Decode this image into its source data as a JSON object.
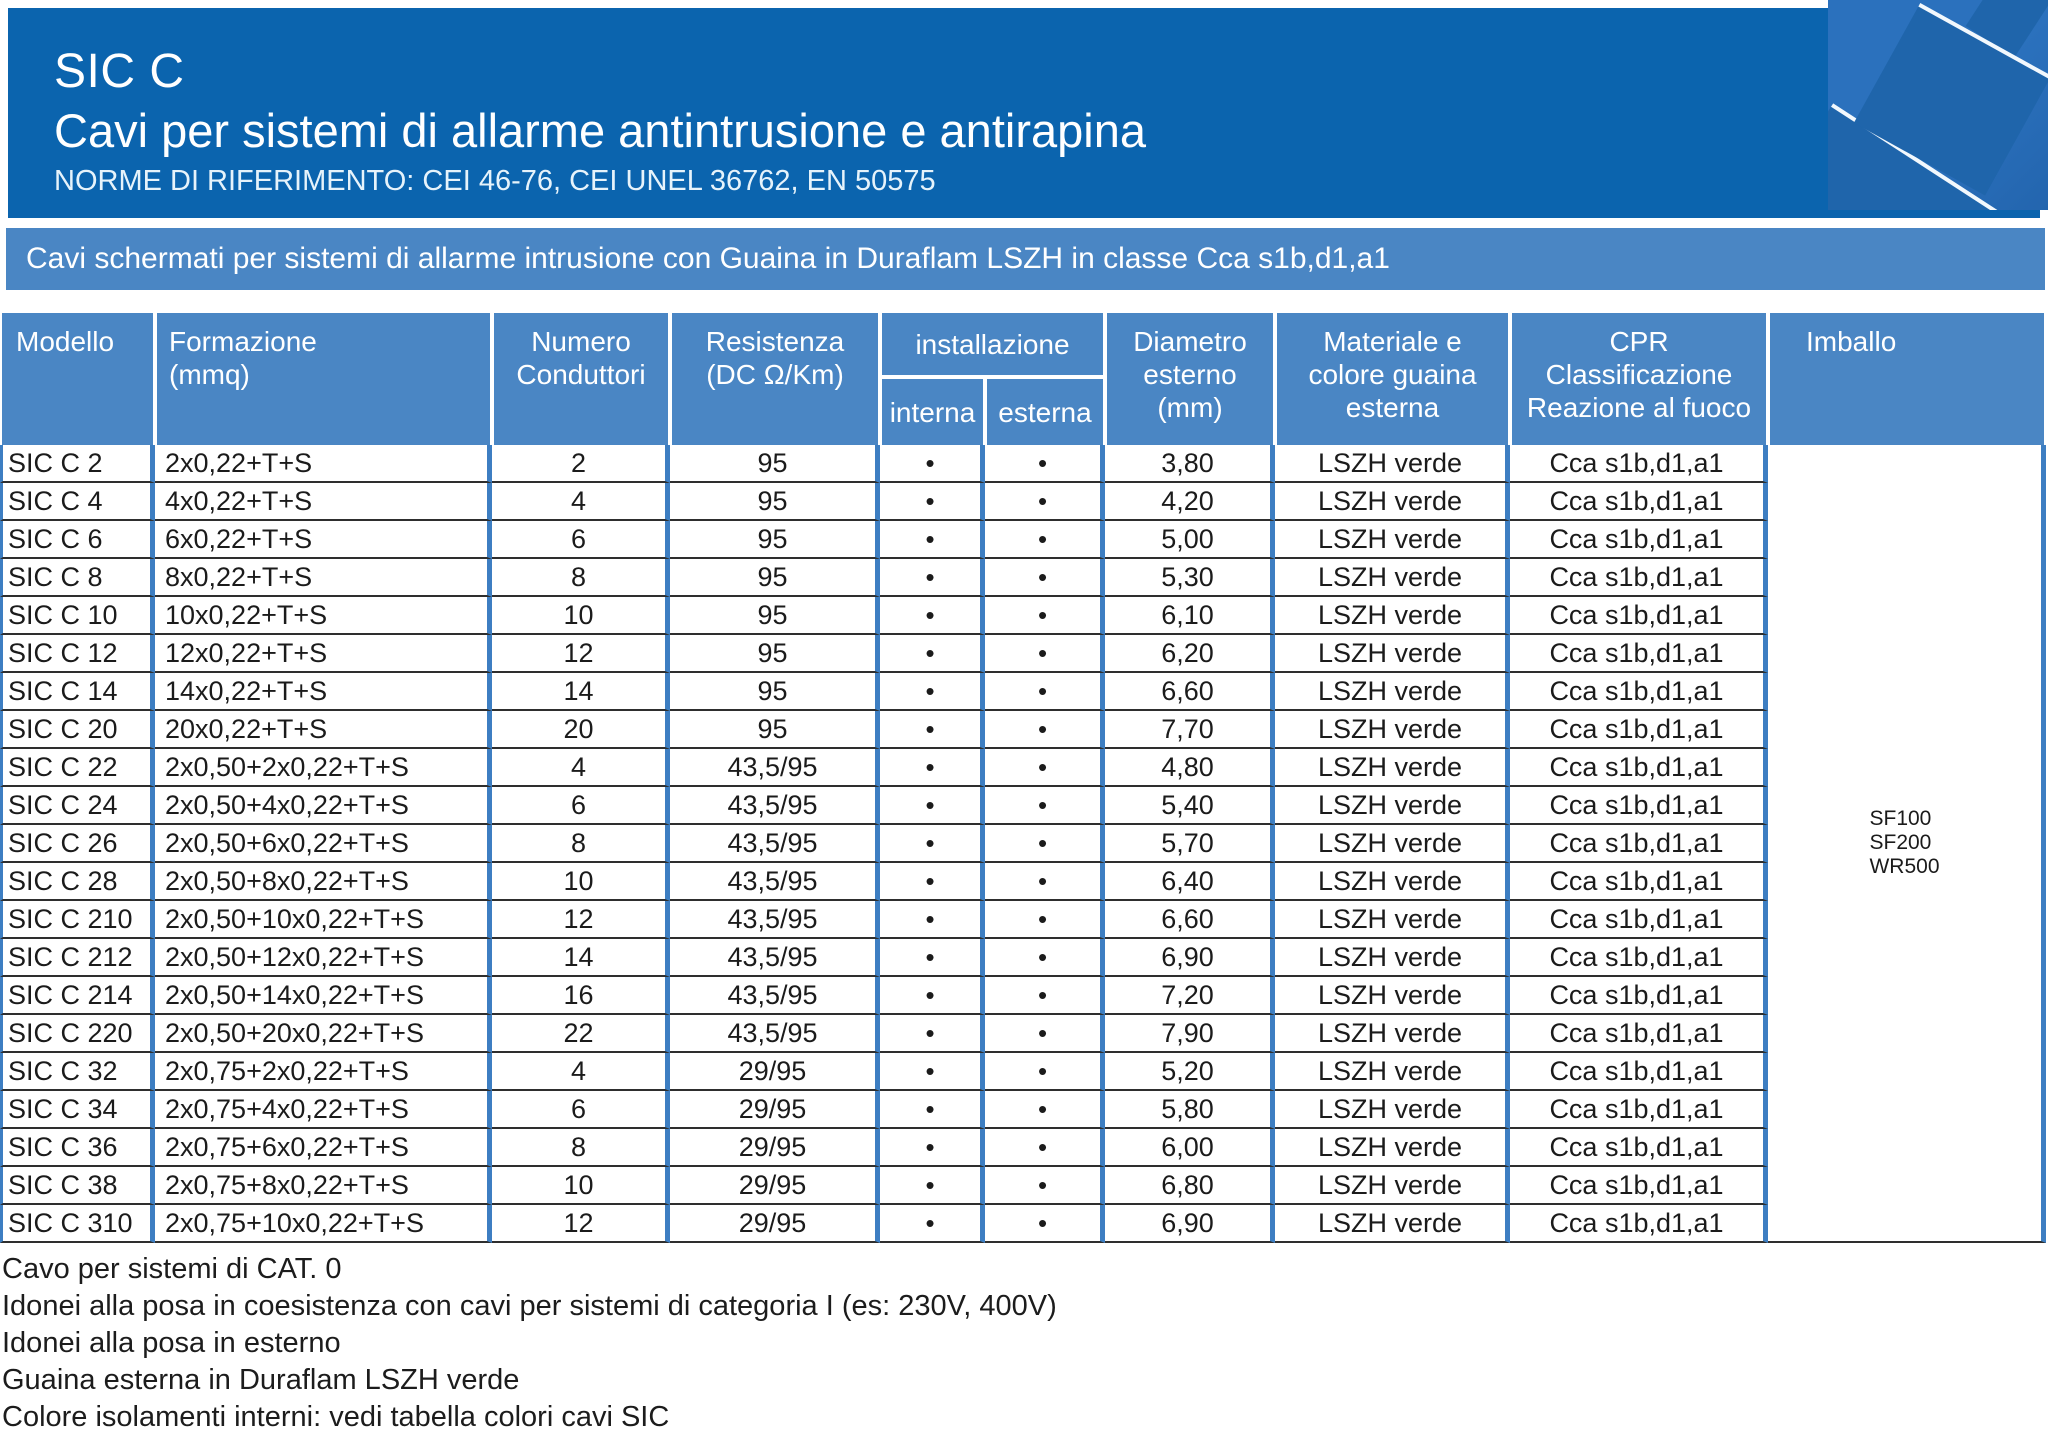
{
  "header": {
    "code": "SIC C",
    "title": "Cavi per sistemi di allarme antintrusione e antirapina",
    "norms": "NORME DI RIFERIMENTO: CEI 46-76, CEI UNEL 36762, EN 50575",
    "banner": "Cavi schermati per sistemi di allarme intrusione con Guaina in Duraflam LSZH in classe Cca s1b,d1,a1"
  },
  "colors": {
    "header_blue": "#0b64ae",
    "panel_blue": "#4a86c4",
    "deco_blue": "#2b71bd",
    "cable_blue": "#1f65ab",
    "grid_blue": "#3d7ec2",
    "line_dark": "#2e2e2e"
  },
  "table": {
    "headers": {
      "modello": "Modello",
      "formazione": "Formazione\n(mmq)",
      "numero": "Numero\nConduttori",
      "resistenza": "Resistenza\n(DC Ω/Km)",
      "installazione": "installazione",
      "interna": "interna",
      "esterna": "esterna",
      "diametro": "Diametro\nesterno\n(mm)",
      "materiale": "Materiale e\ncolore guaina\nesterna",
      "cpr": "CPR\nClassificazione\nReazione al fuoco",
      "imballo": "Imballo"
    },
    "rows": [
      {
        "model": "SIC C 2",
        "formation": "2x0,22+T+S",
        "conductors": "2",
        "resistance": "95",
        "internal": "•",
        "external": "•",
        "diameter": "3,80",
        "sheath": "LSZH verde",
        "cpr": "Cca s1b,d1,a1"
      },
      {
        "model": "SIC C 4",
        "formation": "4x0,22+T+S",
        "conductors": "4",
        "resistance": "95",
        "internal": "•",
        "external": "•",
        "diameter": "4,20",
        "sheath": "LSZH verde",
        "cpr": "Cca s1b,d1,a1"
      },
      {
        "model": "SIC C 6",
        "formation": "6x0,22+T+S",
        "conductors": "6",
        "resistance": "95",
        "internal": "•",
        "external": "•",
        "diameter": "5,00",
        "sheath": "LSZH verde",
        "cpr": "Cca s1b,d1,a1"
      },
      {
        "model": "SIC C 8",
        "formation": "8x0,22+T+S",
        "conductors": "8",
        "resistance": "95",
        "internal": "•",
        "external": "•",
        "diameter": "5,30",
        "sheath": "LSZH verde",
        "cpr": "Cca s1b,d1,a1"
      },
      {
        "model": "SIC C 10",
        "formation": "10x0,22+T+S",
        "conductors": "10",
        "resistance": "95",
        "internal": "•",
        "external": "•",
        "diameter": "6,10",
        "sheath": "LSZH verde",
        "cpr": "Cca s1b,d1,a1"
      },
      {
        "model": "SIC C 12",
        "formation": "12x0,22+T+S",
        "conductors": "12",
        "resistance": "95",
        "internal": "•",
        "external": "•",
        "diameter": "6,20",
        "sheath": "LSZH verde",
        "cpr": "Cca s1b,d1,a1"
      },
      {
        "model": "SIC C 14",
        "formation": "14x0,22+T+S",
        "conductors": "14",
        "resistance": "95",
        "internal": "•",
        "external": "•",
        "diameter": "6,60",
        "sheath": "LSZH verde",
        "cpr": "Cca s1b,d1,a1"
      },
      {
        "model": "SIC C 20",
        "formation": "20x0,22+T+S",
        "conductors": "20",
        "resistance": "95",
        "internal": "•",
        "external": "•",
        "diameter": "7,70",
        "sheath": "LSZH verde",
        "cpr": "Cca s1b,d1,a1"
      },
      {
        "model": "SIC C 22",
        "formation": "2x0,50+2x0,22+T+S",
        "conductors": "4",
        "resistance": "43,5/95",
        "internal": "•",
        "external": "•",
        "diameter": "4,80",
        "sheath": "LSZH verde",
        "cpr": "Cca s1b,d1,a1"
      },
      {
        "model": "SIC C 24",
        "formation": "2x0,50+4x0,22+T+S",
        "conductors": "6",
        "resistance": "43,5/95",
        "internal": "•",
        "external": "•",
        "diameter": "5,40",
        "sheath": "LSZH verde",
        "cpr": "Cca s1b,d1,a1"
      },
      {
        "model": "SIC C 26",
        "formation": "2x0,50+6x0,22+T+S",
        "conductors": "8",
        "resistance": "43,5/95",
        "internal": "•",
        "external": "•",
        "diameter": "5,70",
        "sheath": "LSZH verde",
        "cpr": "Cca s1b,d1,a1"
      },
      {
        "model": "SIC C 28",
        "formation": "2x0,50+8x0,22+T+S",
        "conductors": "10",
        "resistance": "43,5/95",
        "internal": "•",
        "external": "•",
        "diameter": "6,40",
        "sheath": "LSZH verde",
        "cpr": "Cca s1b,d1,a1"
      },
      {
        "model": "SIC C 210",
        "formation": "2x0,50+10x0,22+T+S",
        "conductors": "12",
        "resistance": "43,5/95",
        "internal": "•",
        "external": "•",
        "diameter": "6,60",
        "sheath": "LSZH verde",
        "cpr": "Cca s1b,d1,a1"
      },
      {
        "model": "SIC C 212",
        "formation": "2x0,50+12x0,22+T+S",
        "conductors": "14",
        "resistance": "43,5/95",
        "internal": "•",
        "external": "•",
        "diameter": "6,90",
        "sheath": "LSZH verde",
        "cpr": "Cca s1b,d1,a1"
      },
      {
        "model": "SIC C 214",
        "formation": "2x0,50+14x0,22+T+S",
        "conductors": "16",
        "resistance": "43,5/95",
        "internal": "•",
        "external": "•",
        "diameter": "7,20",
        "sheath": "LSZH verde",
        "cpr": "Cca s1b,d1,a1"
      },
      {
        "model": "SIC C 220",
        "formation": "2x0,50+20x0,22+T+S",
        "conductors": "22",
        "resistance": "43,5/95",
        "internal": "•",
        "external": "•",
        "diameter": "7,90",
        "sheath": "LSZH verde",
        "cpr": "Cca s1b,d1,a1"
      },
      {
        "model": "SIC C 32",
        "formation": "2x0,75+2x0,22+T+S",
        "conductors": "4",
        "resistance": "29/95",
        "internal": "•",
        "external": "•",
        "diameter": "5,20",
        "sheath": "LSZH verde",
        "cpr": "Cca s1b,d1,a1"
      },
      {
        "model": "SIC C 34",
        "formation": "2x0,75+4x0,22+T+S",
        "conductors": "6",
        "resistance": "29/95",
        "internal": "•",
        "external": "•",
        "diameter": "5,80",
        "sheath": "LSZH verde",
        "cpr": "Cca s1b,d1,a1"
      },
      {
        "model": "SIC C 36",
        "formation": "2x0,75+6x0,22+T+S",
        "conductors": "8",
        "resistance": "29/95",
        "internal": "•",
        "external": "•",
        "diameter": "6,00",
        "sheath": "LSZH verde",
        "cpr": "Cca s1b,d1,a1"
      },
      {
        "model": "SIC C 38",
        "formation": "2x0,75+8x0,22+T+S",
        "conductors": "10",
        "resistance": "29/95",
        "internal": "•",
        "external": "•",
        "diameter": "6,80",
        "sheath": "LSZH verde",
        "cpr": "Cca s1b,d1,a1"
      },
      {
        "model": "SIC C 310",
        "formation": "2x0,75+10x0,22+T+S",
        "conductors": "12",
        "resistance": "29/95",
        "internal": "•",
        "external": "•",
        "diameter": "6,90",
        "sheath": "LSZH verde",
        "cpr": "Cca s1b,d1,a1"
      }
    ],
    "imballo_values": [
      "SF100",
      "SF200",
      "WR500"
    ]
  },
  "footer": {
    "notes": [
      "Cavo per sistemi di CAT. 0",
      "Idonei alla posa in coesistenza con cavi per sistemi di categoria I (es: 230V, 400V)",
      "Idonei alla posa in esterno",
      "Guaina esterna in Duraflam LSZH verde",
      "Colore isolamenti interni: vedi tabella colori cavi SIC"
    ]
  }
}
